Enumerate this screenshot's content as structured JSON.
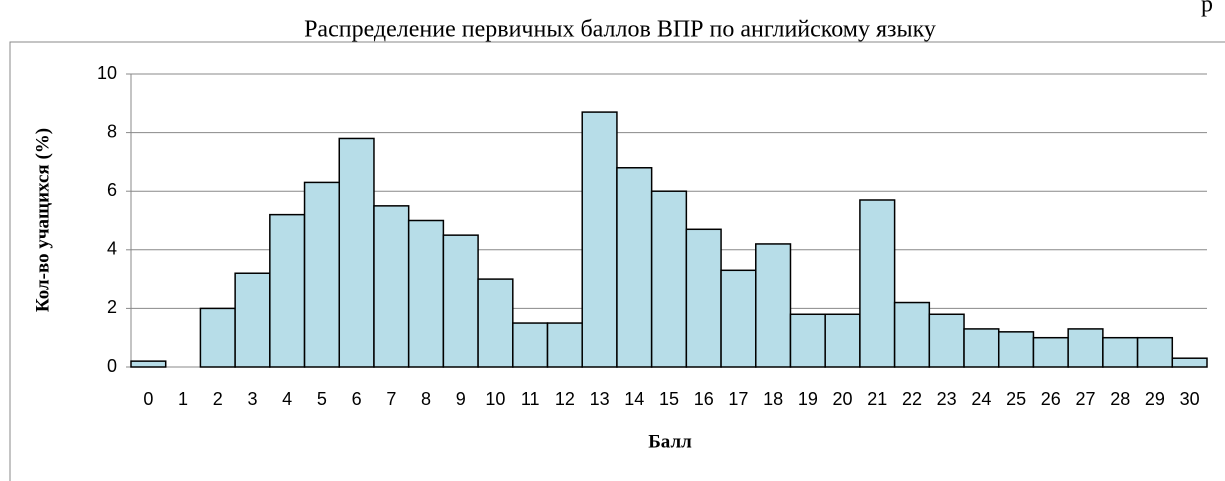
{
  "corner_text": "р",
  "chart_data": {
    "type": "bar",
    "title": "Распределение первичных баллов ВПР по английскому языку",
    "x_label": "Балл",
    "y_label": "Кол-во учащихся (%)",
    "categories": [
      "0",
      "1",
      "2",
      "3",
      "4",
      "5",
      "6",
      "7",
      "8",
      "9",
      "10",
      "11",
      "12",
      "13",
      "14",
      "15",
      "16",
      "17",
      "18",
      "19",
      "20",
      "21",
      "22",
      "23",
      "24",
      "25",
      "26",
      "27",
      "28",
      "29",
      "30"
    ],
    "values": [
      0.2,
      0,
      2.0,
      3.2,
      5.2,
      6.3,
      7.8,
      5.5,
      5.0,
      4.5,
      3.0,
      1.5,
      1.5,
      8.7,
      6.8,
      6.0,
      4.7,
      3.3,
      4.2,
      1.8,
      1.8,
      5.7,
      2.2,
      1.8,
      1.3,
      1.2,
      1.0,
      1.3,
      1.0,
      1.0,
      0.3
    ],
    "color": "#b7dde8",
    "ylim": [
      0,
      10
    ],
    "yticks": [
      0,
      2,
      4,
      6,
      8,
      10
    ],
    "grid": true
  }
}
